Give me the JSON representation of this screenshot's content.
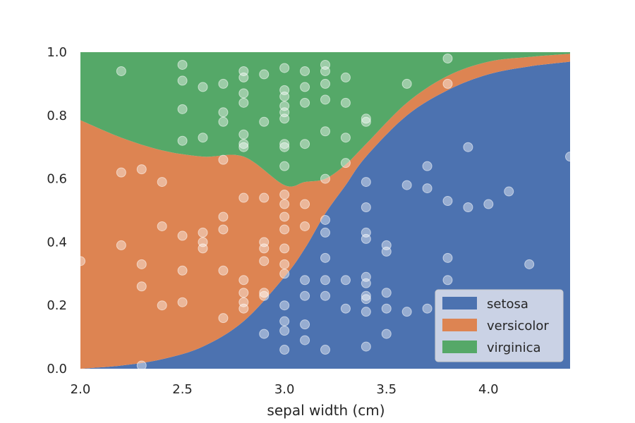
{
  "chart_data": {
    "type": "area",
    "title": "",
    "xlabel": "sepal width (cm)",
    "ylabel": "",
    "xlim": [
      2.0,
      4.4
    ],
    "ylim": [
      0.0,
      1.0
    ],
    "xticks": [
      "2.0",
      "2.5",
      "3.0",
      "3.5",
      "4.0"
    ],
    "yticks": [
      "0.0",
      "0.2",
      "0.4",
      "0.6",
      "0.8",
      "1.0"
    ],
    "grid": false,
    "legend_position": "lower-right",
    "series": [
      {
        "name": "setosa",
        "color": "#4c72b0",
        "x": [
          2.0,
          2.2,
          2.4,
          2.6,
          2.8,
          3.0,
          3.1,
          3.2,
          3.3,
          3.4,
          3.6,
          3.8,
          4.0,
          4.2,
          4.4
        ],
        "y": [
          0.0,
          0.01,
          0.03,
          0.07,
          0.15,
          0.29,
          0.38,
          0.49,
          0.58,
          0.67,
          0.8,
          0.88,
          0.93,
          0.955,
          0.97
        ]
      },
      {
        "name": "versicolor",
        "color": "#dd8452",
        "x": [
          2.0,
          2.2,
          2.4,
          2.6,
          2.8,
          3.0,
          3.1,
          3.2,
          3.3,
          3.4,
          3.6,
          3.8,
          4.0,
          4.2,
          4.4
        ],
        "y": [
          0.785,
          0.72,
          0.66,
          0.6,
          0.52,
          0.29,
          0.21,
          0.11,
          0.065,
          0.04,
          0.04,
          0.045,
          0.04,
          0.03,
          0.025
        ]
      },
      {
        "name": "virginica",
        "color": "#55a868",
        "x": [
          2.0,
          2.2,
          2.4,
          2.6,
          2.8,
          3.0,
          3.1,
          3.2,
          3.3,
          3.4,
          3.6,
          3.8,
          4.0,
          4.2,
          4.4
        ],
        "y": [
          0.215,
          0.27,
          0.31,
          0.33,
          0.33,
          0.42,
          0.41,
          0.4,
          0.355,
          0.29,
          0.16,
          0.075,
          0.03,
          0.015,
          0.005
        ]
      }
    ],
    "scatter_points": [
      [
        2.0,
        0.34
      ],
      [
        2.2,
        0.39
      ],
      [
        2.2,
        0.62
      ],
      [
        2.2,
        0.94
      ],
      [
        2.3,
        0.01
      ],
      [
        2.3,
        0.26
      ],
      [
        2.3,
        0.33
      ],
      [
        2.3,
        0.63
      ],
      [
        2.4,
        0.2
      ],
      [
        2.4,
        0.45
      ],
      [
        2.4,
        0.59
      ],
      [
        2.5,
        0.21
      ],
      [
        2.5,
        0.31
      ],
      [
        2.5,
        0.42
      ],
      [
        2.5,
        0.72
      ],
      [
        2.5,
        0.82
      ],
      [
        2.5,
        0.91
      ],
      [
        2.5,
        0.96
      ],
      [
        2.6,
        0.38
      ],
      [
        2.6,
        0.4
      ],
      [
        2.6,
        0.43
      ],
      [
        2.6,
        0.73
      ],
      [
        2.6,
        0.89
      ],
      [
        2.7,
        0.16
      ],
      [
        2.7,
        0.31
      ],
      [
        2.7,
        0.44
      ],
      [
        2.7,
        0.48
      ],
      [
        2.7,
        0.66
      ],
      [
        2.7,
        0.78
      ],
      [
        2.7,
        0.81
      ],
      [
        2.7,
        0.9
      ],
      [
        2.8,
        0.19
      ],
      [
        2.8,
        0.21
      ],
      [
        2.8,
        0.24
      ],
      [
        2.8,
        0.28
      ],
      [
        2.8,
        0.54
      ],
      [
        2.8,
        0.7
      ],
      [
        2.8,
        0.71
      ],
      [
        2.8,
        0.74
      ],
      [
        2.8,
        0.84
      ],
      [
        2.8,
        0.87
      ],
      [
        2.8,
        0.92
      ],
      [
        2.8,
        0.94
      ],
      [
        2.9,
        0.11
      ],
      [
        2.9,
        0.23
      ],
      [
        2.9,
        0.24
      ],
      [
        2.9,
        0.34
      ],
      [
        2.9,
        0.38
      ],
      [
        2.9,
        0.4
      ],
      [
        2.9,
        0.54
      ],
      [
        2.9,
        0.78
      ],
      [
        2.9,
        0.93
      ],
      [
        3.0,
        0.06
      ],
      [
        3.0,
        0.12
      ],
      [
        3.0,
        0.15
      ],
      [
        3.0,
        0.2
      ],
      [
        3.0,
        0.3
      ],
      [
        3.0,
        0.33
      ],
      [
        3.0,
        0.38
      ],
      [
        3.0,
        0.44
      ],
      [
        3.0,
        0.48
      ],
      [
        3.0,
        0.52
      ],
      [
        3.0,
        0.55
      ],
      [
        3.0,
        0.64
      ],
      [
        3.0,
        0.7
      ],
      [
        3.0,
        0.71
      ],
      [
        3.0,
        0.79
      ],
      [
        3.0,
        0.81
      ],
      [
        3.0,
        0.83
      ],
      [
        3.0,
        0.86
      ],
      [
        3.0,
        0.88
      ],
      [
        3.0,
        0.95
      ],
      [
        3.1,
        0.09
      ],
      [
        3.1,
        0.14
      ],
      [
        3.1,
        0.23
      ],
      [
        3.1,
        0.28
      ],
      [
        3.1,
        0.45
      ],
      [
        3.1,
        0.52
      ],
      [
        3.1,
        0.71
      ],
      [
        3.1,
        0.84
      ],
      [
        3.1,
        0.89
      ],
      [
        3.1,
        0.94
      ],
      [
        3.2,
        0.06
      ],
      [
        3.2,
        0.23
      ],
      [
        3.2,
        0.28
      ],
      [
        3.2,
        0.35
      ],
      [
        3.2,
        0.43
      ],
      [
        3.2,
        0.47
      ],
      [
        3.2,
        0.6
      ],
      [
        3.2,
        0.75
      ],
      [
        3.2,
        0.85
      ],
      [
        3.2,
        0.9
      ],
      [
        3.2,
        0.94
      ],
      [
        3.2,
        0.96
      ],
      [
        3.3,
        0.19
      ],
      [
        3.3,
        0.28
      ],
      [
        3.3,
        0.65
      ],
      [
        3.3,
        0.73
      ],
      [
        3.3,
        0.84
      ],
      [
        3.3,
        0.92
      ],
      [
        3.4,
        0.07
      ],
      [
        3.4,
        0.18
      ],
      [
        3.4,
        0.22
      ],
      [
        3.4,
        0.23
      ],
      [
        3.4,
        0.27
      ],
      [
        3.4,
        0.29
      ],
      [
        3.4,
        0.41
      ],
      [
        3.4,
        0.43
      ],
      [
        3.4,
        0.51
      ],
      [
        3.4,
        0.59
      ],
      [
        3.4,
        0.78
      ],
      [
        3.4,
        0.79
      ],
      [
        3.5,
        0.11
      ],
      [
        3.5,
        0.19
      ],
      [
        3.5,
        0.24
      ],
      [
        3.5,
        0.37
      ],
      [
        3.5,
        0.39
      ],
      [
        3.6,
        0.18
      ],
      [
        3.6,
        0.58
      ],
      [
        3.6,
        0.9
      ],
      [
        3.7,
        0.19
      ],
      [
        3.7,
        0.57
      ],
      [
        3.7,
        0.64
      ],
      [
        3.8,
        0.28
      ],
      [
        3.8,
        0.35
      ],
      [
        3.8,
        0.53
      ],
      [
        3.8,
        0.9
      ],
      [
        3.8,
        0.98
      ],
      [
        3.9,
        0.51
      ],
      [
        3.9,
        0.7
      ],
      [
        4.0,
        0.52
      ],
      [
        4.1,
        0.56
      ],
      [
        4.2,
        0.33
      ],
      [
        4.4,
        0.67
      ]
    ],
    "scatter_color": "#ffffff"
  }
}
